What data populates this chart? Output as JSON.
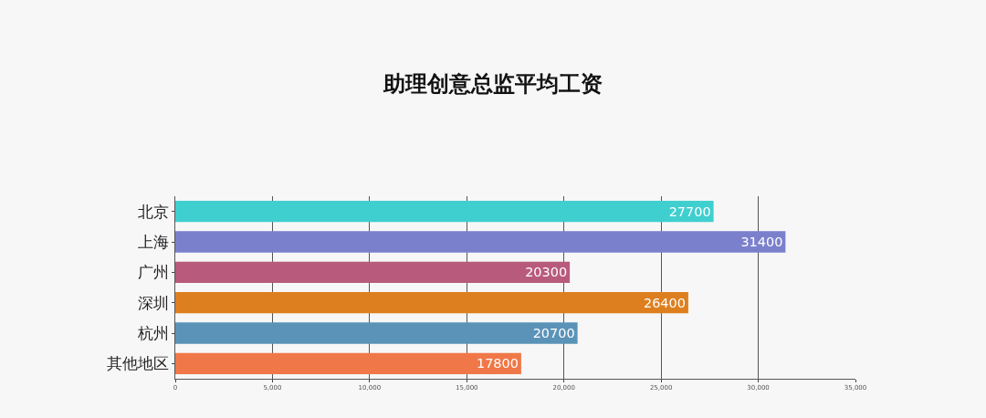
{
  "chart_data": {
    "type": "bar",
    "orientation": "horizontal",
    "title": "助理创意总监平均工资",
    "categories": [
      "北京",
      "上海",
      "广州",
      "深圳",
      "杭州",
      "其他地区"
    ],
    "values": [
      27700,
      31400,
      20300,
      26400,
      20700,
      17800
    ],
    "colors": [
      "#3fcfcf",
      "#7b80cc",
      "#b85a7c",
      "#de7f1f",
      "#5b93b8",
      "#f07848"
    ],
    "xlim": [
      0,
      35000
    ],
    "xticks": [
      0,
      {
        "value": 5000,
        "label": "5,000"
      },
      {
        "value": 10000,
        "label": "10,000"
      },
      {
        "value": 15000,
        "label": "15,000"
      },
      {
        "value": 20000,
        "label": "20,000"
      },
      {
        "value": 25000,
        "label": "25,000"
      },
      {
        "value": 30000,
        "label": "30,000"
      },
      {
        "value": 35000,
        "label": "35,000"
      }
    ],
    "data_labels": true,
    "grid": "x"
  }
}
